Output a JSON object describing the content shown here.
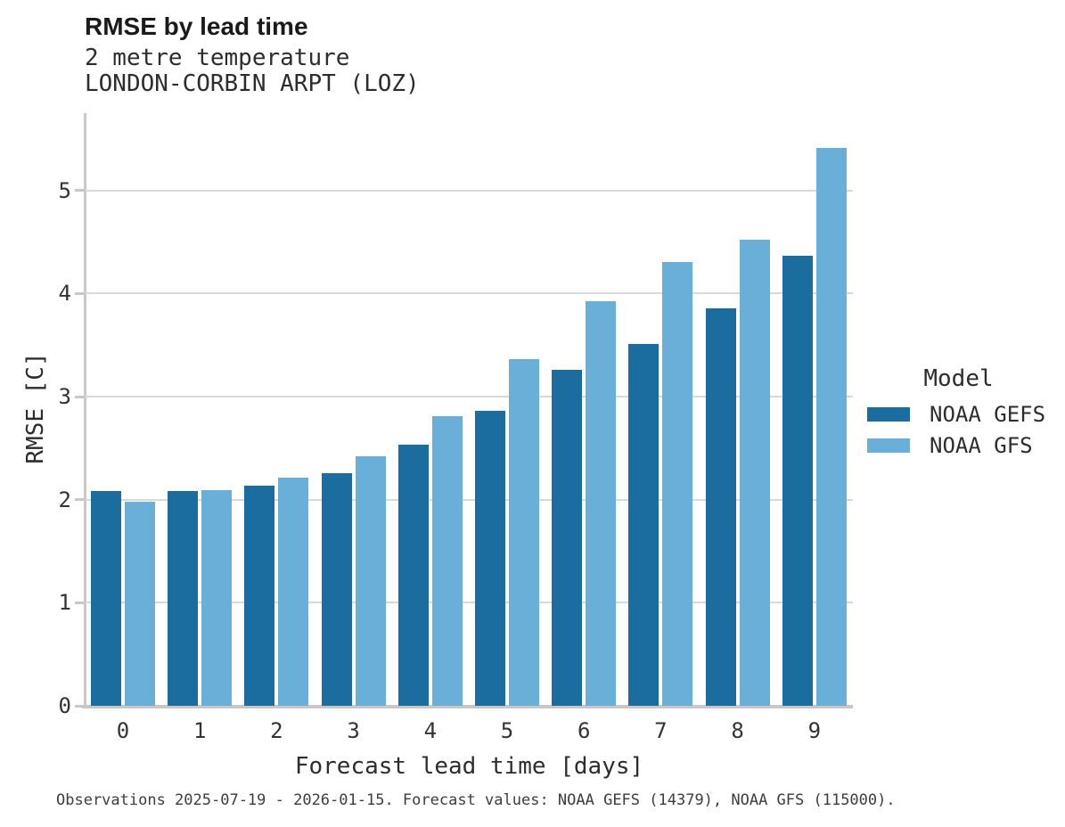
{
  "header": {
    "title": "RMSE by lead time",
    "subtitle_line1": "2 metre temperature",
    "subtitle_line2": "LONDON-CORBIN ARPT (LOZ)"
  },
  "chart_data": {
    "type": "bar",
    "title": "RMSE by lead time",
    "subtitle": [
      "2 metre temperature",
      "LONDON-CORBIN ARPT (LOZ)"
    ],
    "xlabel": "Forecast lead time [days]",
    "ylabel": "RMSE [C]",
    "categories": [
      "0",
      "1",
      "2",
      "3",
      "4",
      "5",
      "6",
      "7",
      "8",
      "9"
    ],
    "series": [
      {
        "name": "NOAA GEFS",
        "color": "#1A6D9E",
        "values": [
          2.08,
          2.08,
          2.14,
          2.26,
          2.53,
          2.86,
          3.26,
          3.51,
          3.86,
          4.37
        ]
      },
      {
        "name": "NOAA GFS",
        "color": "#6AAFD8",
        "values": [
          1.98,
          2.09,
          2.21,
          2.42,
          2.81,
          3.36,
          3.93,
          4.31,
          4.52,
          5.41
        ]
      }
    ],
    "ylim": [
      0,
      5.75
    ],
    "yticks": [
      0,
      1,
      2,
      3,
      4,
      5
    ],
    "grid": "horizontal",
    "legend_title": "Model",
    "legend_position": "right-center"
  },
  "legend": {
    "title": "Model",
    "items": [
      {
        "label": "NOAA GEFS",
        "color": "#1A6D9E"
      },
      {
        "label": "NOAA GFS",
        "color": "#6AAFD8"
      }
    ]
  },
  "caption": "Observations 2025-07-19 - 2026-01-15. Forecast values: NOAA GEFS (14379), NOAA GFS (115000)."
}
